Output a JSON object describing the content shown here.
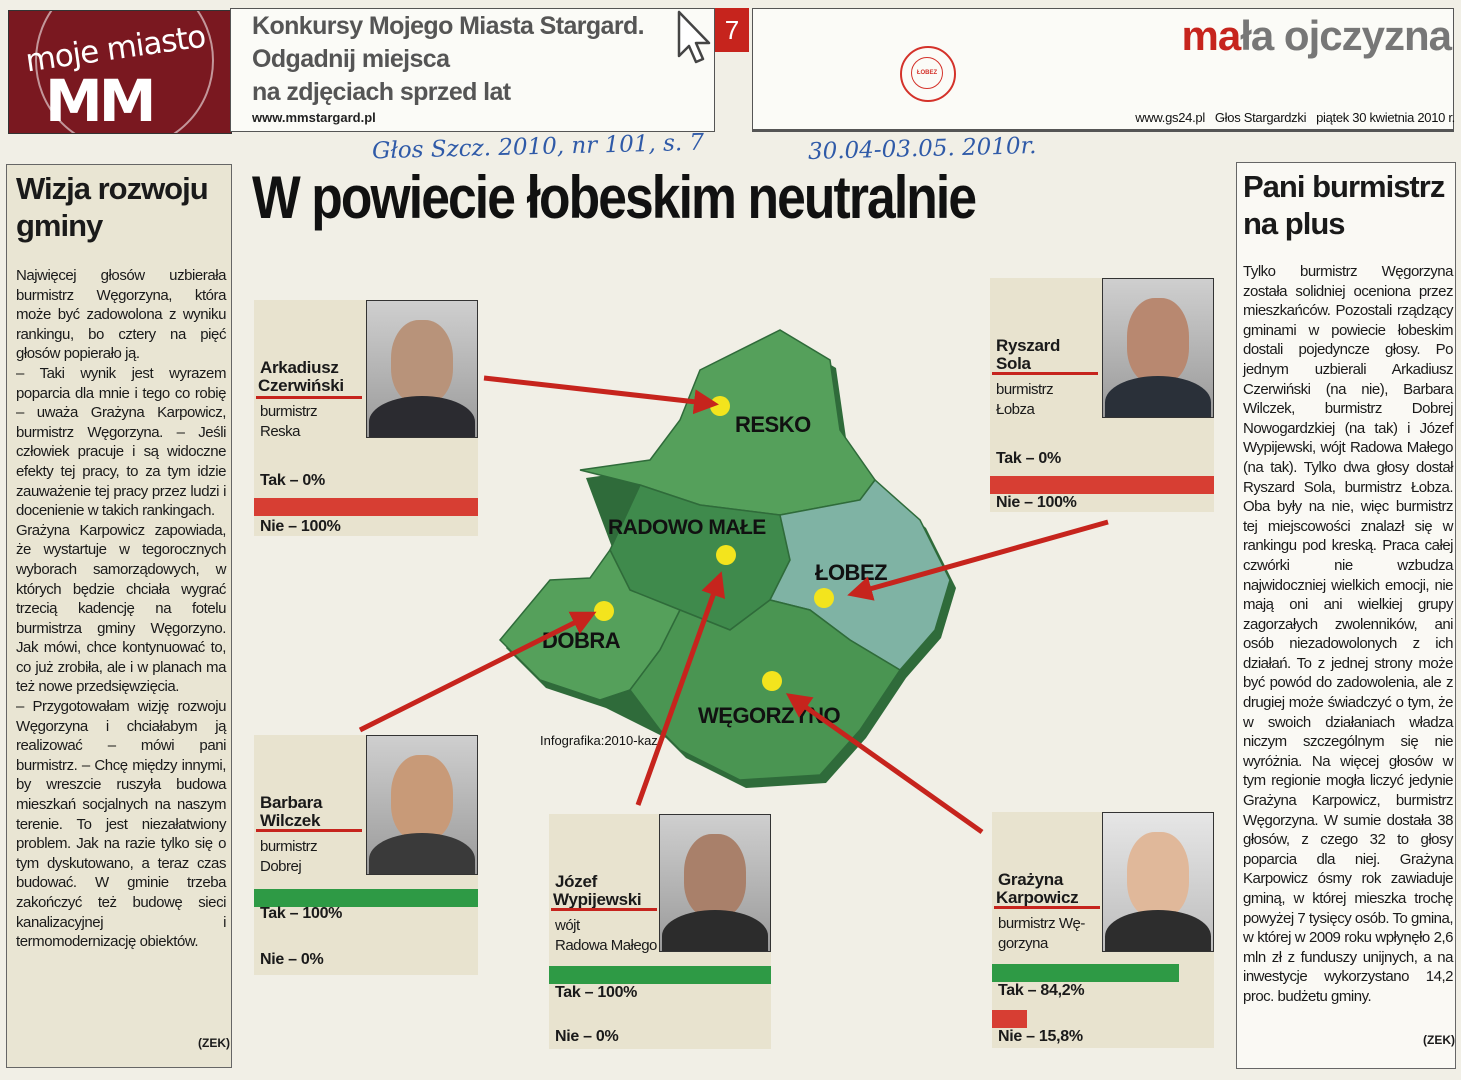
{
  "header": {
    "logo_text": "moje miasto",
    "logo_mark": "MM",
    "title_lines": [
      "Konkursy Mojego Miasta Stargard.",
      "Odgadnij miejsca",
      "na zdjęciach sprzed lat"
    ],
    "url": "www.mmstargard.pl",
    "page_number": "7",
    "section_title_red": "ma",
    "section_title_rest": "ła ojczyzna",
    "stamp_text": "ŁOBEZ",
    "meta": "www.gs24.pl   Głos Stargardzki   piątek 30 kwietnia 2010 r.",
    "icons": [
      "cursor-arrow-icon",
      "library-stamp-icon"
    ]
  },
  "handwritten": {
    "note1": "Głos Szcz. 2010, nr 101, s. 7",
    "note2": "30.04-03.05. 2010r."
  },
  "main_title": "W powiecie łobeskim neutralnie",
  "left_column": {
    "heading": "Wizja rozwoju gminy",
    "body": "Najwięcej głosów uzbierała burmistrz Węgorzyna, która może być zadowolona z wyniku rankingu, bo cztery na pięć głosów popierało ją.\n– Taki wynik jest wyrazem poparcia dla mnie i tego co robię – uważa Grażyna Karpowicz, burmistrz Węgorzyna. – Jeśli człowiek pracuje i są widoczne efekty tej pracy, to za tym idzie zauważenie tej pracy przez ludzi i docenienie w takich rankingach.\nGrażyna Karpowicz zapowiada, że wystartuje w tegorocznych wyborach samorządowych, w których będzie chciała wygrać trzecią kadencję na fotelu burmistrza gminy Węgorzyno. Jak mówi, chce kontynuować to, co już zrobiła, ale i w planach ma też nowe przedsięwzięcia.\n– Przygotowałam wizję rozwoju Węgorzyna i chciałabym ją realizować – mówi pani burmistrz. – Chcę między innymi, by wreszcie ruszyła budowa mieszkań socjalnych na naszym terenie. To jest niezałatwiony problem. Jak na razie tylko się o tym dyskutowano, a teraz czas budować. W gminie trzeba zakończyć też budowę sieci kanalizacyjnej i termomodernizację obiektów.",
    "signature": "(ZEK)"
  },
  "right_column": {
    "heading": "Pani burmistrz na plus",
    "body": "Tylko burmistrz Węgorzyna została solidniej oceniona przez mieszkańców. Pozostali rządzący gminami w powiecie łobeskim dostali pojedyncze głosy. Po jednym uzbierali Arkadiusz Czerwiński (na nie), Barbara Wilczek, burmistrz Dobrej Nowogardzkiej (na tak) i Józef Wypijewski, wójt Radowa Małego (na tak). Tylko dwa głosy dostał Ryszard Sola, burmistrz Łobza. Oba były na nie, więc burmistrz tej miejscowości znalazł się w rankingu pod kreską. Praca całej czwórki nie wzbudza najwidoczniej wielkich emocji, nie mają oni ani wielkiej grupy zagorzałych zwolenników, ani osób niezadowolonych z ich działań. To z jednej strony może być powód do zadowolenia, ale z drugiej może świadczyć o tym, że w swoich działaniach władza niczym szczególnym się nie wyróżnia. Na więcej głosów w tym regionie mogła liczyć jedynie Grażyna Karpowicz, burmistrz Węgorzyna. W sumie dostała 38 głosów, z czego 32 to głosy poparcia dla niej. Grażyna Karpowicz ósmy rok zawiaduje gminą, w której mieszka trochę powyżej 7 tysięcy osób. To gmina, w której w 2009 roku wpłynęło 2,6 mln zł z funduszy unijnych, a na inwestycje wykorzystano 14,2 proc. budżetu gminy.",
    "signature": "(ZEK)"
  },
  "cards": [
    {
      "id": "czerwinski",
      "first": "Arkadiusz",
      "last": "Czerwiński",
      "role1": "burmistrz",
      "role2": "Reska",
      "tak": "Tak – 0%",
      "nie": "Nie – 100%",
      "tak_pct": 0,
      "nie_pct": 100
    },
    {
      "id": "sola",
      "first": "Ryszard",
      "last": "Sola",
      "role1": "burmistrz",
      "role2": "Łobza",
      "tak": "Tak – 0%",
      "nie": "Nie – 100%",
      "tak_pct": 0,
      "nie_pct": 100
    },
    {
      "id": "wilczek",
      "first": "Barbara",
      "last": "Wilczek",
      "role1": "burmistrz",
      "role2": "Dobrej",
      "tak": "Tak – 100%",
      "nie": "Nie – 0%",
      "tak_pct": 100,
      "nie_pct": 0
    },
    {
      "id": "wypijewski",
      "first": "Józef",
      "last": "Wypijewski",
      "role1": "wójt",
      "role2": "Radowa Małego",
      "tak": "Tak – 100%",
      "nie": "Nie – 0%",
      "tak_pct": 100,
      "nie_pct": 0
    },
    {
      "id": "karpowicz",
      "first": "Grażyna",
      "last": "Karpowicz",
      "role1": "burmistrz Wę-",
      "role2": "gorzyna",
      "tak": "Tak – 84,2%",
      "nie": "Nie – 15,8%",
      "tak_pct": 84.2,
      "nie_pct": 15.8
    }
  ],
  "map": {
    "regions": [
      "RESKO",
      "RADOWO MAŁE",
      "ŁOBEZ",
      "DOBRA",
      "WĘGORZYNO"
    ],
    "credit": "Infografika:2010-kaz",
    "colors": {
      "dark": "#3f8a4c",
      "mid": "#55a05b",
      "light": "#6db46a",
      "blue": "#7fb3a4",
      "dot": "#f3e41d",
      "arrow": "#c6241d"
    }
  }
}
